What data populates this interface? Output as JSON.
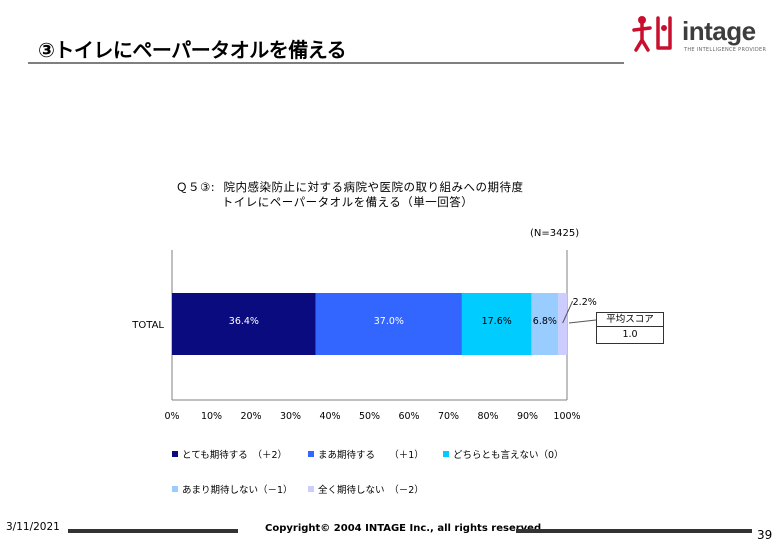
{
  "page": {
    "title": "③トイレにペーパータオルを備える",
    "date": "3/11/2021",
    "copyright": "Copyright© 2004 INTAGE Inc., all rights reserved.",
    "page_number": "39"
  },
  "logo": {
    "mark_icon": "intage-logo-icon",
    "wordmark": "intage",
    "tagline": "THE INTELLIGENCE PROVIDER"
  },
  "colors": {
    "navy": "#0b0b80",
    "blue": "#3366ff",
    "cyan": "#00ccff",
    "lightblue": "#99ccff",
    "lavender": "#ccccff"
  },
  "chart_data": {
    "type": "bar",
    "orientation": "horizontal-stacked-100",
    "title": "Ｑ５③:  院内感染防止に対する病院や医院の取り組みへの期待度\n           トイレにペーパータオルを備える（単一回答）",
    "sample_size": "(N=3425)",
    "categories": [
      "TOTAL"
    ],
    "series": [
      {
        "name": "とても期待する　（＋2）",
        "values": [
          36.4
        ],
        "label": "36.4%",
        "color": "#0b0b80",
        "label_color": "#ffffff"
      },
      {
        "name": "まあ期待する　　（＋1）",
        "values": [
          37.0
        ],
        "label": "37.0%",
        "color": "#3366ff",
        "label_color": "#ffffff"
      },
      {
        "name": "どちらとも言えない（0）",
        "values": [
          17.6
        ],
        "label": "17.6%",
        "color": "#00ccff",
        "label_color": "#000000"
      },
      {
        "name": "あまり期待しない（－1）",
        "values": [
          6.8
        ],
        "label": "6.8%",
        "color": "#99ccff",
        "label_color": "#000000"
      },
      {
        "name": "全く期待しない　（－2）",
        "values": [
          2.2
        ],
        "label": "2.2%",
        "color": "#ccccff",
        "label_color": "#000000"
      }
    ],
    "x_ticks": [
      "0%",
      "10%",
      "20%",
      "30%",
      "40%",
      "50%",
      "60%",
      "70%",
      "80%",
      "90%",
      "100%"
    ],
    "xlim": [
      0,
      100
    ],
    "average_score": {
      "label": "平均スコア",
      "value": "1.0"
    }
  }
}
